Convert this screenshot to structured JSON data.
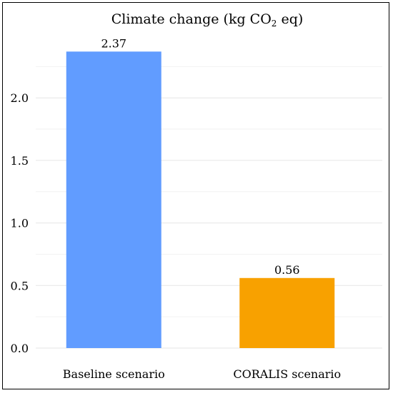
{
  "chart_data": {
    "type": "bar",
    "title": "Climate change (kg CO",
    "title_subscript": "2",
    "title_suffix": " eq)",
    "categories": [
      "Baseline scenario",
      "CORALIS scenario"
    ],
    "values": [
      2.37,
      0.56
    ],
    "value_labels": [
      "2.37",
      "0.56"
    ],
    "colors": [
      "#619CFF",
      "#F8A100"
    ],
    "ylim": [
      0,
      2.5
    ],
    "yticks": [
      "0.0",
      "0.5",
      "1.0",
      "1.5",
      "2.0"
    ],
    "xlabel": "",
    "ylabel": "",
    "grid": true,
    "legend": "none"
  }
}
